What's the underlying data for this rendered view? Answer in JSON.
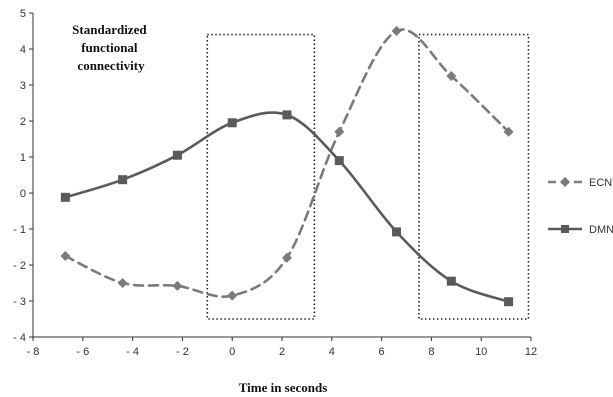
{
  "chart_data": {
    "type": "line",
    "title_lines": [
      "Standardized",
      "functional",
      "connectivity"
    ],
    "xlabel": "Time in seconds",
    "ylabel": "",
    "xlim": [
      -8,
      12
    ],
    "ylim": [
      -4,
      5
    ],
    "x_ticks": [
      -8,
      -6,
      -4,
      -2,
      0,
      2,
      4,
      6,
      8,
      10,
      12
    ],
    "x_tick_labels": [
      "- 8",
      "- 6",
      "- 4",
      "- 2",
      "0",
      "2",
      "4",
      "6",
      "8",
      "10",
      "12"
    ],
    "y_ticks": [
      -4,
      -3,
      -2,
      -1,
      0,
      1,
      2,
      3,
      4,
      5
    ],
    "y_tick_labels": [
      "- 4",
      "- 3",
      "- 2",
      "- 1",
      "0",
      "1",
      "2",
      "3",
      "4",
      "5"
    ],
    "grid": false,
    "legend_position": "right",
    "series": [
      {
        "name": "ECN",
        "style": "dashed",
        "marker": "diamond",
        "color": "#7a7a7a",
        "x": [
          -6.7,
          -4.4,
          -2.2,
          0.0,
          2.2,
          4.3,
          6.6,
          8.8,
          11.1
        ],
        "y": [
          -1.75,
          -2.5,
          -2.58,
          -2.85,
          -1.8,
          1.7,
          4.5,
          3.25,
          1.7
        ]
      },
      {
        "name": "DMN",
        "style": "solid",
        "marker": "square",
        "color": "#5a5a5a",
        "x": [
          -6.7,
          -4.4,
          -2.2,
          0.0,
          2.2,
          4.3,
          6.6,
          8.8,
          11.1
        ],
        "y": [
          -0.12,
          0.37,
          1.05,
          1.95,
          2.17,
          0.9,
          -1.08,
          -2.45,
          -3.02
        ]
      }
    ],
    "highlight_windows": [
      {
        "x_range": [
          -1.0,
          3.3
        ],
        "y_range": [
          -3.5,
          4.4
        ]
      },
      {
        "x_range": [
          7.5,
          11.9
        ],
        "y_range": [
          -3.5,
          4.4
        ]
      }
    ]
  }
}
